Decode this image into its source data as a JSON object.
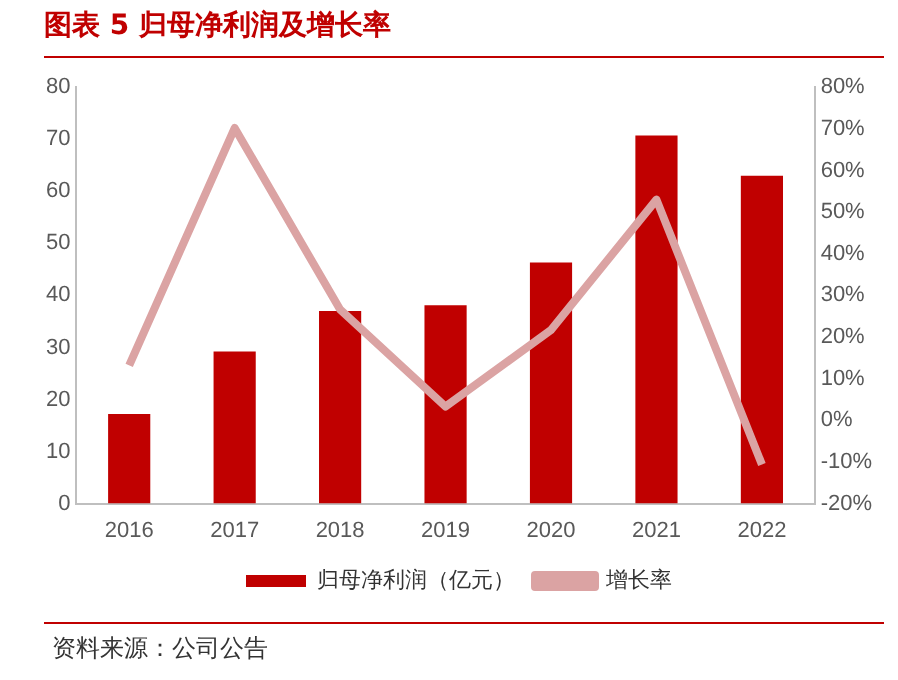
{
  "chart_data": {
    "type": "bar",
    "title": "图表 5 归母净利润及增长率",
    "categories": [
      "2016",
      "2017",
      "2018",
      "2019",
      "2020",
      "2021",
      "2022"
    ],
    "series": [
      {
        "name": "归母净利润（亿元）",
        "color": "#c00000",
        "values": [
          17.2,
          29.2,
          37,
          38.1,
          46.3,
          70.7,
          63
        ]
      },
      {
        "name": "增长率",
        "type": "line",
        "axis": "y2",
        "color": "#dba3a3",
        "marker": "none",
        "values": [
          13.2,
          70.2,
          26.6,
          3.3,
          21.7,
          53,
          -10.6
        ]
      }
    ],
    "ylim": [
      0,
      80
    ],
    "yticks": [
      0,
      10,
      20,
      30,
      40,
      50,
      60,
      70,
      80
    ],
    "y2lim": [
      -20,
      80
    ],
    "y2ticks": [
      {
        "value": -20,
        "label": "-20%"
      },
      {
        "value": -10,
        "label": "-10%"
      },
      {
        "value": 0,
        "label": "0%"
      },
      {
        "value": 10,
        "label": "10%"
      },
      {
        "value": 20,
        "label": "20%"
      },
      {
        "value": 30,
        "label": "30%"
      },
      {
        "value": 40,
        "label": "40%"
      },
      {
        "value": 50,
        "label": "50%"
      },
      {
        "value": 60,
        "label": "60%"
      },
      {
        "value": 70,
        "label": "70%"
      },
      {
        "value": 80,
        "label": "80%"
      }
    ],
    "grid": false,
    "legend": "bottom",
    "annotations": [
      "资料来源：公司公告"
    ]
  }
}
